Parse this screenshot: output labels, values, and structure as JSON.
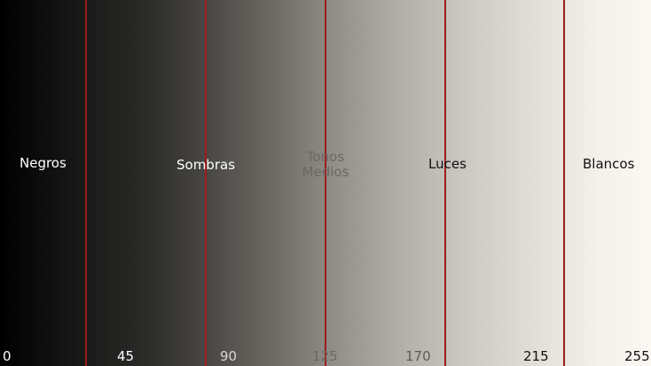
{
  "zones": {
    "negros": "Negros",
    "sombras": "Sombras",
    "tonos_line1": "Tonos",
    "tonos_line2": "Medios",
    "luces": "Luces",
    "blancos": "Blancos"
  },
  "ticks": [
    "0",
    "45",
    "90",
    "125",
    "170",
    "215",
    "255"
  ],
  "colors": {
    "gradient_start": "#000000",
    "gradient_end": "#fbf8f3",
    "divider": "#9e1d1d",
    "label_light": "#ffffff",
    "label_mid": "#6b6864",
    "label_dark": "#111111"
  }
}
